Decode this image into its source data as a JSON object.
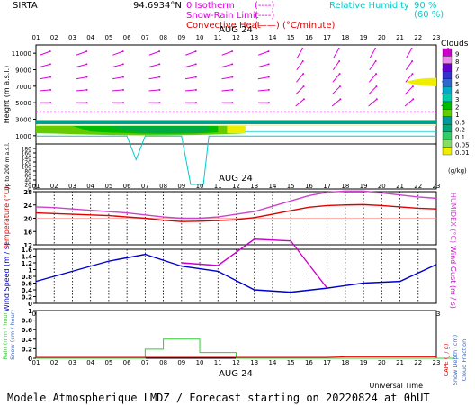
{
  "header": {
    "station": "SIRTA",
    "coords": "94.6934°N",
    "legend_left": [
      {
        "name": "0 Isotherm",
        "sample": "(----)",
        "color": "#e000e0"
      },
      {
        "name": "Snow-Rain Limit",
        "sample": "(----)",
        "color": "#e000e0"
      },
      {
        "name": "Convective Heat",
        "sample": "(——) (°C/minute)",
        "color": "#e00000"
      }
    ],
    "legend_right": {
      "name": "Relative Humidity",
      "v1": "90 %",
      "v2": "(60 %)",
      "color": "#00cccc"
    }
  },
  "hours": [
    "01",
    "02",
    "03",
    "04",
    "05",
    "06",
    "07",
    "08",
    "09",
    "10",
    "11",
    "12",
    "13",
    "14",
    "15",
    "16",
    "17",
    "18",
    "19",
    "20",
    "21",
    "22",
    "23"
  ],
  "date_label": "AUG 24",
  "footer": {
    "xlabel": "Universal Time",
    "caption": "Modele Atmospherique LMDZ / Forecast starting on 20220824 at 0hUT"
  },
  "chart_data": [
    {
      "type": "heatmap",
      "panel": "clouds",
      "ylabel": "Height (m a.s.l.)",
      "ylabel_low": "Up to 200 m a.s.l.",
      "yticks_high": [
        1000,
        3000,
        5000,
        7000,
        9000,
        11000
      ],
      "yticks_low": [
        0,
        20,
        40,
        60,
        80,
        100,
        120,
        140,
        160,
        180
      ],
      "colorbar": {
        "title": "Clouds",
        "unit": "(g/kg)",
        "labels": [
          "9",
          "8",
          "7",
          "6",
          "5",
          "4",
          "3",
          "2",
          "1",
          "0.5",
          "0.2",
          "0.1",
          "0.05",
          "0.01"
        ],
        "colors": [
          "#cc00cc",
          "#ee88ee",
          "#6600cc",
          "#3333cc",
          "#3366cc",
          "#00aacc",
          "#00ccaa",
          "#00bb00",
          "#66cc00",
          "#009999",
          "#00aa77",
          "#33cc66",
          "#88dd66",
          "#eeee00"
        ]
      },
      "isotherm_height": 3900,
      "cloud_layers": [
        {
          "x": [
            1,
            12.5
          ],
          "base": 1100,
          "top": 2700,
          "level": "0.2-2"
        },
        {
          "x": [
            1,
            23
          ],
          "base": 2400,
          "top": 2900,
          "level": "0.05-0.2"
        },
        {
          "x": [
            21.5,
            23
          ],
          "base": 7000,
          "top": 8000,
          "level": "0.01"
        }
      ]
    },
    {
      "type": "line",
      "panel": "temperature",
      "ylabel": "Temperature (°C)",
      "ylabel_right": "HUMIDEX (°C)",
      "ylim": [
        12.0,
        28.0
      ],
      "yticks": [
        12.0,
        16.0,
        20.0,
        24.0,
        28.0
      ],
      "x": [
        1,
        2,
        3,
        4,
        5,
        6,
        7,
        8,
        9,
        10,
        11,
        12,
        13,
        14,
        15,
        16,
        17,
        18,
        19,
        20,
        21,
        22,
        23
      ],
      "series": [
        {
          "name": "Temperature",
          "color": "#e00000",
          "values": [
            21.6,
            21.4,
            21.2,
            21.0,
            20.8,
            20.4,
            20.0,
            19.4,
            19.0,
            19.1,
            19.3,
            19.6,
            20.2,
            21.2,
            22.3,
            23.3,
            23.8,
            24.0,
            24.1,
            23.8,
            23.4,
            23.0,
            22.8
          ]
        },
        {
          "name": "HUMIDEX",
          "color": "#cc44cc",
          "values": [
            23.4,
            23.2,
            22.8,
            22.4,
            22.0,
            21.6,
            21.0,
            20.4,
            20.0,
            20.0,
            20.4,
            21.2,
            22.0,
            23.6,
            25.2,
            26.8,
            27.8,
            28.2,
            28.2,
            27.6,
            27.0,
            26.4,
            26.0
          ]
        }
      ],
      "reference_line": 20.0
    },
    {
      "type": "line",
      "panel": "wind",
      "ylabel": "Wind Speed (m / s)",
      "ylabel_right": "Wind Gust (m / s)",
      "ylim": [
        0.0,
        1.6
      ],
      "yticks": [
        0.0,
        0.2,
        0.4,
        0.6,
        0.8,
        1.0,
        1.2,
        1.4,
        1.6
      ],
      "x": [
        1,
        3,
        5,
        7,
        9,
        11,
        13,
        15,
        17,
        19,
        21,
        23
      ],
      "series": [
        {
          "name": "Wind Speed",
          "color": "#0000cc",
          "values": [
            0.65,
            0.95,
            1.25,
            1.45,
            1.1,
            0.95,
            0.4,
            0.33,
            0.45,
            0.6,
            0.65,
            1.15
          ]
        },
        {
          "name": "Wind Gust",
          "color": "#cc00cc",
          "values": [
            null,
            null,
            null,
            null,
            1.2,
            1.12,
            1.9,
            1.85,
            0.45,
            null,
            null,
            null
          ]
        }
      ]
    },
    {
      "type": "bar",
      "panel": "precip",
      "ylabel": "Rain (mm / hour)",
      "ylabel2": "Snow (cm / hour)",
      "ylabel_right": "CAPE (J / g)",
      "ylabel_right2": "Snow Depth (cm)",
      "ylabel_right3": "Cloud Fraction",
      "ylim": [
        0.0,
        1.0
      ],
      "yticks": [
        0.0,
        0.2,
        0.4,
        0.6,
        0.8,
        1.0
      ],
      "x": [
        1,
        2,
        3,
        4,
        5,
        6,
        7,
        8,
        9,
        10,
        11,
        12,
        13,
        14,
        15,
        16,
        17,
        18,
        19,
        20,
        21,
        22,
        23
      ],
      "rain": [
        0,
        0,
        0,
        0,
        0,
        0,
        0.19,
        0.4,
        0.4,
        0.12,
        0.12,
        0,
        0,
        0,
        0,
        0,
        0,
        0,
        0,
        0,
        0,
        0,
        0
      ],
      "cape": [
        0.02,
        0.02,
        0.02,
        0.02,
        0.02,
        0.02,
        0.02,
        0.02,
        0.02,
        0.02,
        0.02,
        0.02,
        0.02,
        0.02,
        0.02,
        0.02,
        0.02,
        0.03,
        0.03,
        0.03,
        0.03,
        0.03,
        0.03
      ]
    }
  ]
}
